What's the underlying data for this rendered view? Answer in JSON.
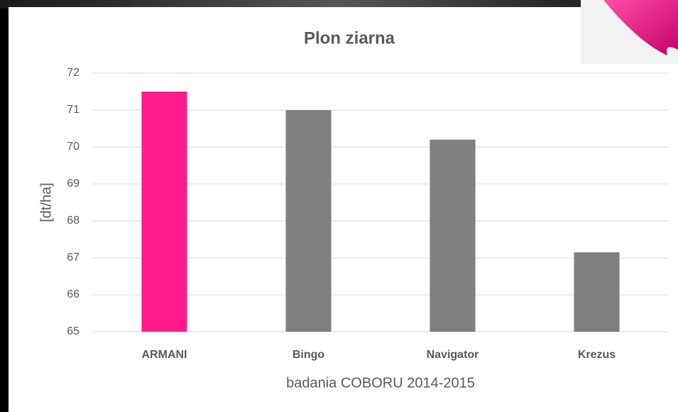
{
  "chart_data": {
    "type": "bar",
    "title": "Plon ziarna",
    "y_label": "[dt/ha]",
    "x_label": "badania COBORU 2014-2015",
    "categories": [
      "ARMANI",
      "Bingo",
      "Navigator",
      "Krezus"
    ],
    "values": [
      71.5,
      71.0,
      70.2,
      67.15
    ],
    "colors": [
      "#ff1a8c",
      "#808080",
      "#808080",
      "#808080"
    ],
    "ylim": [
      65,
      72
    ],
    "yticks": [
      65,
      66,
      67,
      68,
      69,
      70,
      71,
      72
    ],
    "grid": true
  }
}
